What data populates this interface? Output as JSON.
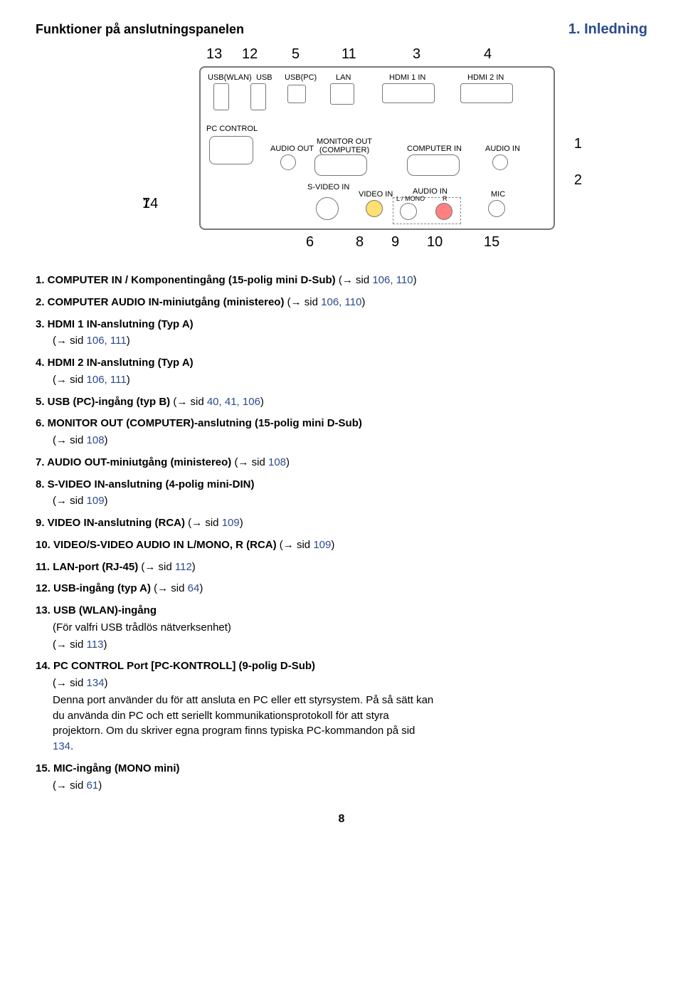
{
  "header": {
    "section_title": "Funktioner på anslutningspanelen",
    "chapter_title": "1. Inledning"
  },
  "callouts": {
    "top": [
      "13",
      "12",
      "5",
      "11",
      "3",
      "4"
    ],
    "right": [
      "1",
      "2"
    ],
    "left": [
      "14",
      "7"
    ],
    "bottom": [
      "6",
      "8",
      "9",
      "10",
      "15"
    ]
  },
  "panel_labels": {
    "usb_wlan": "USB(WLAN)",
    "usb": "USB",
    "usb_pc": "USB(PC)",
    "lan": "LAN",
    "hdmi1": "HDMI 1 IN",
    "hdmi2": "HDMI 2 IN",
    "pc_control": "PC CONTROL",
    "audio_out": "AUDIO OUT",
    "monitor_out": "MONITOR OUT\n(COMPUTER)",
    "computer_in": "COMPUTER IN",
    "audio_in": "AUDIO IN",
    "svideo_in": "S-VIDEO IN",
    "video_in": "VIDEO IN",
    "audio_in2": "AUDIO IN",
    "lmono": "L / MONO",
    "r": "R",
    "mic": "MIC"
  },
  "items": [
    {
      "num": "1.",
      "title": "COMPUTER IN / Komponentingång (15-polig mini D-Sub)",
      "refs": " (→ sid ",
      "pages": "106, 110",
      "close": ")"
    },
    {
      "num": "2.",
      "title": "COMPUTER AUDIO IN-miniutgång (ministereo)",
      "refs": " (→ sid ",
      "pages": "106, 110",
      "close": ")"
    },
    {
      "num": "3.",
      "title": "HDMI 1 IN-anslutning (Typ A)",
      "refs": "(→ sid ",
      "pages": "106, 111",
      "close": ")",
      "newline": true
    },
    {
      "num": "4.",
      "title": "HDMI 2 IN-anslutning (Typ A)",
      "refs": "(→ sid ",
      "pages": "106, 111",
      "close": ")",
      "newline": true
    },
    {
      "num": "5.",
      "title": "USB (PC)-ingång (typ B)",
      "refs": " (→ sid ",
      "pages": "40, 41, 106",
      "close": ")"
    },
    {
      "num": "6.",
      "title": "MONITOR OUT (COMPUTER)-anslutning (15-polig mini D-Sub)",
      "refs": "(→ sid ",
      "pages": "108",
      "close": ")",
      "newline": true
    },
    {
      "num": "7.",
      "title": "AUDIO OUT-miniutgång (ministereo)",
      "refs": " (→ sid ",
      "pages": "108",
      "close": ")"
    },
    {
      "num": "8.",
      "title": "S-VIDEO IN-anslutning (4-polig mini-DIN)",
      "refs": "(→ sid ",
      "pages": "109",
      "close": ")",
      "newline": true
    },
    {
      "num": "9.",
      "title": "VIDEO IN-anslutning (RCA)",
      "refs": " (→ sid ",
      "pages": "109",
      "close": ")"
    },
    {
      "num": "10.",
      "title": "VIDEO/S-VIDEO AUDIO IN L/MONO, R (RCA)",
      "refs": " (→ sid ",
      "pages": "109",
      "close": ")"
    },
    {
      "num": "11.",
      "title": "LAN-port (RJ-45)",
      "refs": " (→ sid ",
      "pages": "112",
      "close": ")"
    },
    {
      "num": "12.",
      "title": "USB-ingång (typ A)",
      "refs": " (→ sid ",
      "pages": "64",
      "close": ")"
    },
    {
      "num": "13.",
      "title": "USB (WLAN)-ingång",
      "desc1": "(För valfri USB trådlös nätverksenhet)",
      "refs": "(→ sid ",
      "pages": "113",
      "close": ")",
      "newline": true
    },
    {
      "num": "14.",
      "title": "PC CONTROL Port [PC-KONTROLL] (9-polig D-Sub)",
      "refs": "(→ sid ",
      "pages": "134",
      "close": ")",
      "newline": true,
      "desc2a": "Denna port använder du för att ansluta en PC eller ett styrsystem. På så sätt kan du använda din PC och ett seriellt kommunikationsprotokoll för att styra projektorn. Om du skriver egna program finns typiska PC-kommandon på sid ",
      "desc2page": "134",
      "desc2b": "."
    },
    {
      "num": "15.",
      "title": "MIC-ingång (MONO mini)",
      "refs": "(→ sid ",
      "pages": "61",
      "close": ")",
      "newline": true
    }
  ],
  "page_number": "8"
}
